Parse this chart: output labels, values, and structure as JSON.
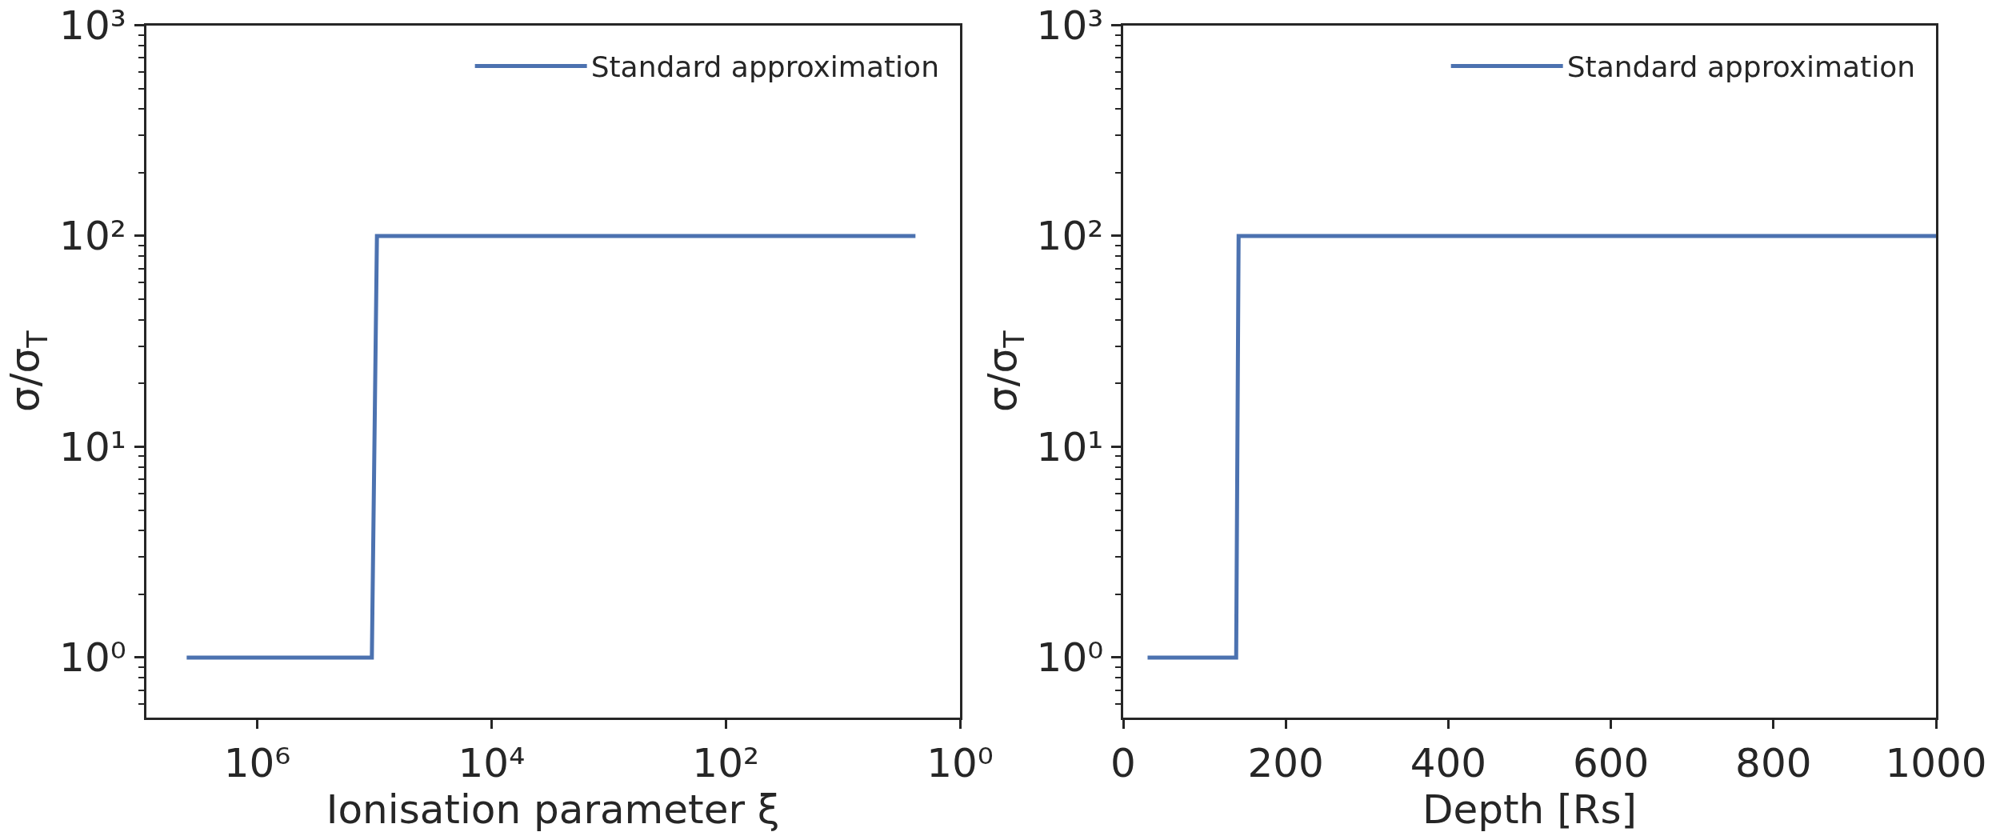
{
  "chart_data": [
    {
      "type": "line",
      "xlabel": "Ionisation parameter ξ",
      "ylabel": "σ/σ$_{T}$",
      "log": "xy",
      "legend": "top right",
      "xlim": [
        8900000,
        1
      ],
      "xticks": [
        {
          "value": 1000000,
          "label": "10⁶"
        },
        {
          "value": 10000,
          "label": "10⁴"
        },
        {
          "value": 100,
          "label": "10²"
        },
        {
          "value": 1,
          "label": "10⁰"
        }
      ],
      "ylim": [
        0.52,
        1000
      ],
      "yticks": [
        {
          "value": 1,
          "label": "10⁰"
        },
        {
          "value": 10,
          "label": "10¹"
        },
        {
          "value": 100,
          "label": "10²"
        },
        {
          "value": 1000,
          "label": "10³"
        }
      ],
      "series": [
        {
          "name": "Standard approximation",
          "color": "#4c72b0",
          "x": [
            4000000,
            105000,
            95000,
            2.4
          ],
          "values": [
            1,
            1,
            100,
            100
          ]
        }
      ]
    },
    {
      "type": "line",
      "xlabel": "Depth [Rs]",
      "ylabel": "σ/σ$_{T}$",
      "log": "y",
      "legend": "top right",
      "xlim": [
        0,
        1000
      ],
      "xticks": [
        0,
        200,
        400,
        600,
        800,
        1000
      ],
      "ylim": [
        0.52,
        1000
      ],
      "yticks": [
        {
          "value": 1,
          "label": "10⁰"
        },
        {
          "value": 10,
          "label": "10¹"
        },
        {
          "value": 100,
          "label": "10²"
        },
        {
          "value": 1000,
          "label": "10³"
        }
      ],
      "series": [
        {
          "name": "Standard approximation",
          "color": "#4c72b0",
          "x": [
            30,
            139,
            142,
            1000
          ],
          "values": [
            1,
            1,
            100,
            100
          ]
        }
      ]
    }
  ]
}
